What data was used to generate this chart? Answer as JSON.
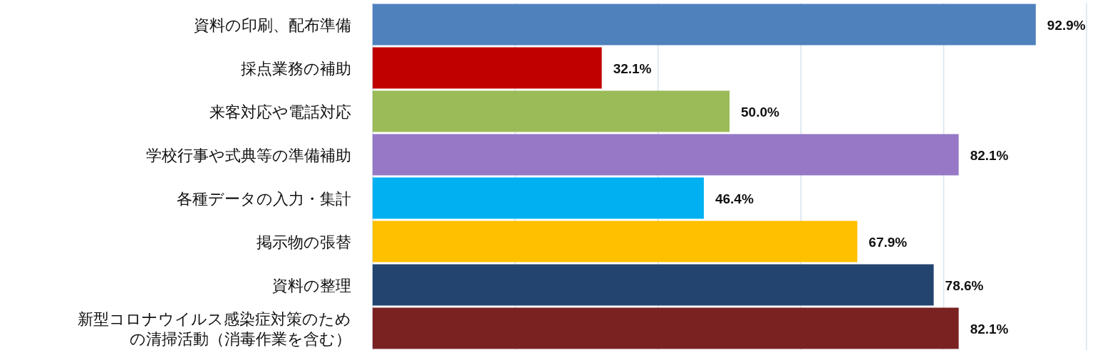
{
  "chart_data": {
    "type": "bar",
    "orientation": "horizontal",
    "categories": [
      "資料の印刷、配布準備",
      "採点業務の補助",
      "来客対応や電話対応",
      "学校行事や式典等の準備補助",
      "各種データの入力・集計",
      "掲示物の張替",
      "資料の整理",
      "新型コロナウイルス感染症対策のための清掃活動（消毒作業を含む）"
    ],
    "values": [
      92.9,
      32.1,
      50.0,
      82.1,
      46.4,
      67.9,
      78.6,
      82.1
    ],
    "colors": [
      "#4f81bd",
      "#c00000",
      "#9bbb59",
      "#9678c6",
      "#00b0f0",
      "#ffc000",
      "#244470",
      "#7a2222"
    ],
    "value_labels": [
      "92.9%",
      "32.1%",
      "50.0%",
      "82.1%",
      "46.4%",
      "67.9%",
      "78.6%",
      "82.1%"
    ],
    "xlim": [
      0,
      100
    ],
    "xticks": [
      {
        "value": 0,
        "label": null
      },
      {
        "value": 20,
        "label": null
      },
      {
        "value": 40,
        "label": null
      },
      {
        "value": 60,
        "label": null
      },
      {
        "value": 80,
        "label": null
      },
      {
        "value": 100,
        "label": null
      }
    ],
    "grid": "x",
    "tick_labels": "y"
  }
}
